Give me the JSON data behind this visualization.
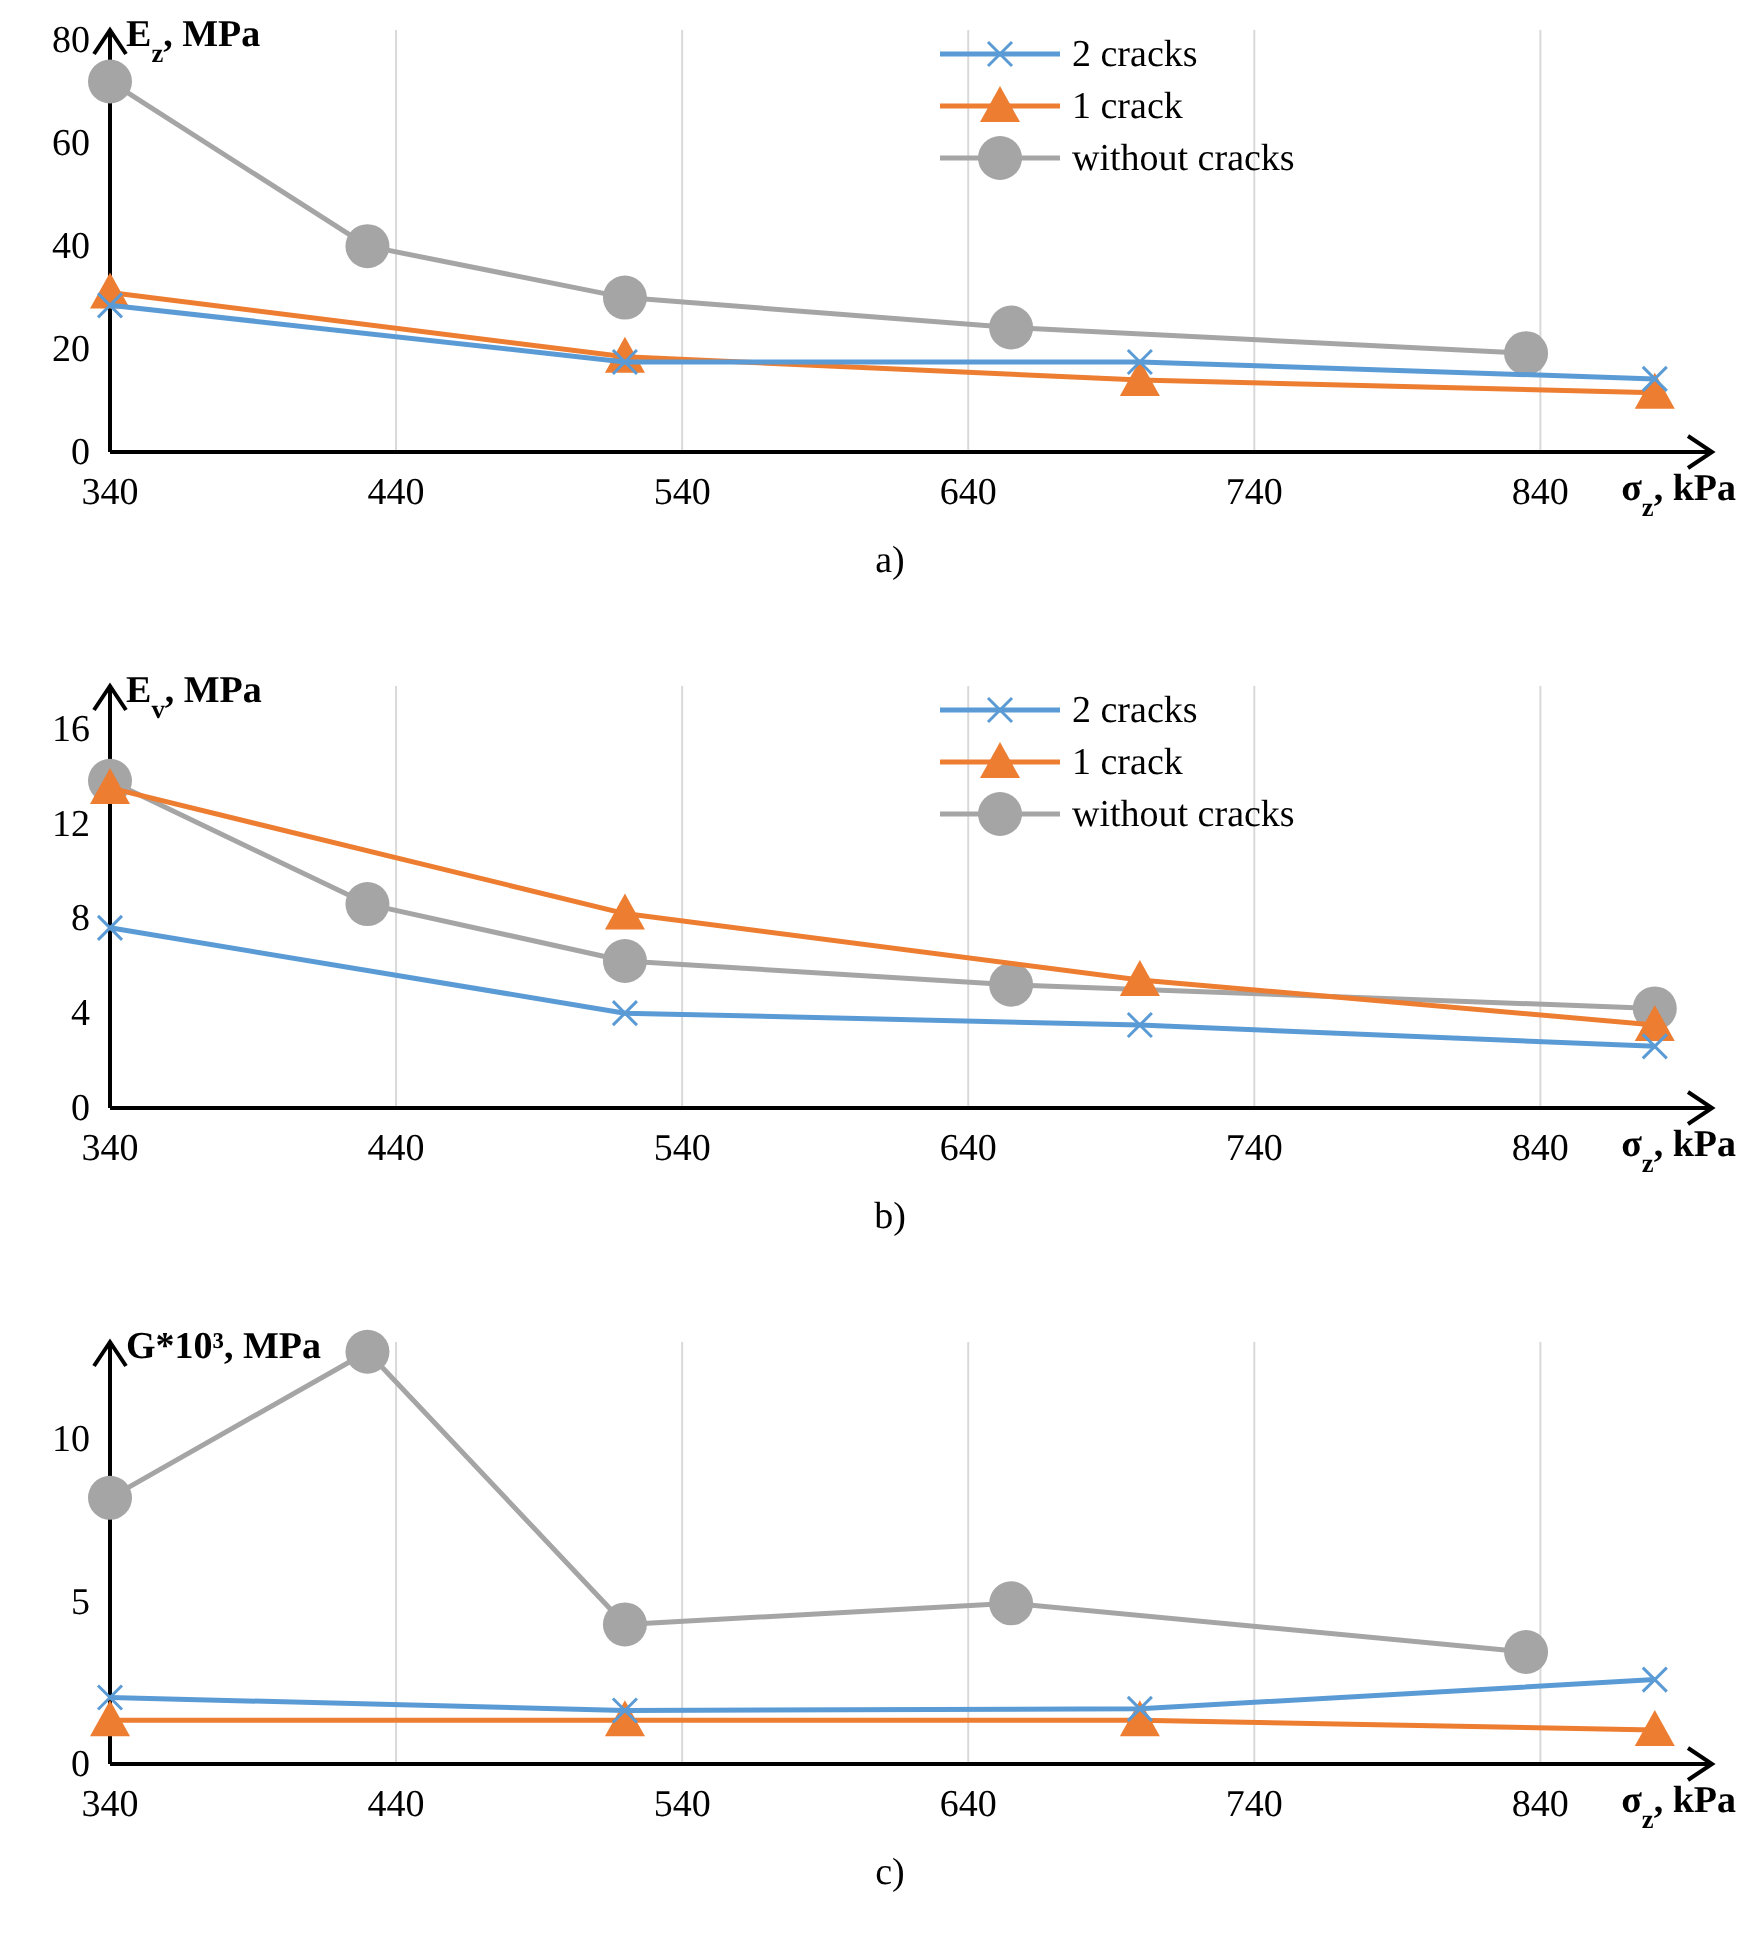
{
  "chart_data": [
    {
      "type": "line",
      "ylabel": "E$_{z}$, MPa",
      "xlabel": "σ$_{z}$, kPa",
      "xlim": [
        340,
        900
      ],
      "xticks": [
        340,
        440,
        540,
        640,
        740,
        840
      ],
      "ylim": [
        0,
        82
      ],
      "yticks": [
        0,
        20,
        40,
        60,
        80
      ],
      "grid": "x",
      "legend": "top right",
      "annotations": [
        "a)"
      ],
      "series": [
        {
          "name": "2 cracks",
          "color": "#5b9bd5",
          "marker": "cross",
          "x": [
            340,
            520,
            700,
            880
          ],
          "values": [
            28.5,
            17.5,
            17.5,
            14.2
          ]
        },
        {
          "name": "1 crack",
          "color": "#ed7d31",
          "marker": "triangle",
          "x": [
            340,
            520,
            700,
            880
          ],
          "values": [
            31,
            18.5,
            14,
            11.5
          ]
        },
        {
          "name": "without cracks",
          "color": "#a5a5a5",
          "marker": "circle",
          "x": [
            340,
            430,
            520,
            655,
            835
          ],
          "values": [
            72,
            40,
            30,
            24.2,
            19.2
          ]
        }
      ]
    },
    {
      "type": "line",
      "ylabel": "E$_{v}$, MPa",
      "xlabel": "σ$_{z}$, kPa",
      "xlim": [
        340,
        900
      ],
      "xticks": [
        340,
        440,
        540,
        640,
        740,
        840
      ],
      "ylim": [
        0,
        17.8
      ],
      "yticks": [
        0,
        4,
        8,
        12,
        16
      ],
      "grid": "x",
      "legend": "top right",
      "annotations": [
        "b)"
      ],
      "series": [
        {
          "name": "2 cracks",
          "color": "#5b9bd5",
          "marker": "cross",
          "x": [
            340,
            520,
            700,
            880
          ],
          "values": [
            7.6,
            4.0,
            3.5,
            2.6
          ]
        },
        {
          "name": "1 crack",
          "color": "#ed7d31",
          "marker": "triangle",
          "x": [
            340,
            520,
            700,
            880
          ],
          "values": [
            13.5,
            8.2,
            5.4,
            3.5
          ]
        },
        {
          "name": "without cracks",
          "color": "#a5a5a5",
          "marker": "circle",
          "x": [
            340,
            430,
            520,
            655,
            880
          ],
          "values": [
            13.8,
            8.6,
            6.2,
            5.2,
            4.2
          ]
        }
      ]
    },
    {
      "type": "line",
      "ylabel": "G*10³, MPa",
      "xlabel": "σ$_{z}$, kPa",
      "xlim": [
        340,
        900
      ],
      "xticks": [
        340,
        440,
        540,
        640,
        740,
        840
      ],
      "ylim": [
        0,
        13
      ],
      "yticks": [
        0,
        5,
        10
      ],
      "grid": "x",
      "annotations": [
        "c)"
      ],
      "series": [
        {
          "color": "#5b9bd5",
          "marker": "cross",
          "x": [
            340,
            520,
            700,
            880
          ],
          "values": [
            2.05,
            1.65,
            1.7,
            2.6
          ]
        },
        {
          "color": "#ed7d31",
          "marker": "triangle",
          "x": [
            340,
            520,
            700,
            880
          ],
          "values": [
            1.35,
            1.35,
            1.35,
            1.05
          ]
        },
        {
          "color": "#a5a5a5",
          "marker": "circle",
          "x": [
            340,
            430,
            520,
            655,
            835
          ],
          "values": [
            8.2,
            12.7,
            4.3,
            4.95,
            3.45
          ]
        }
      ]
    }
  ]
}
